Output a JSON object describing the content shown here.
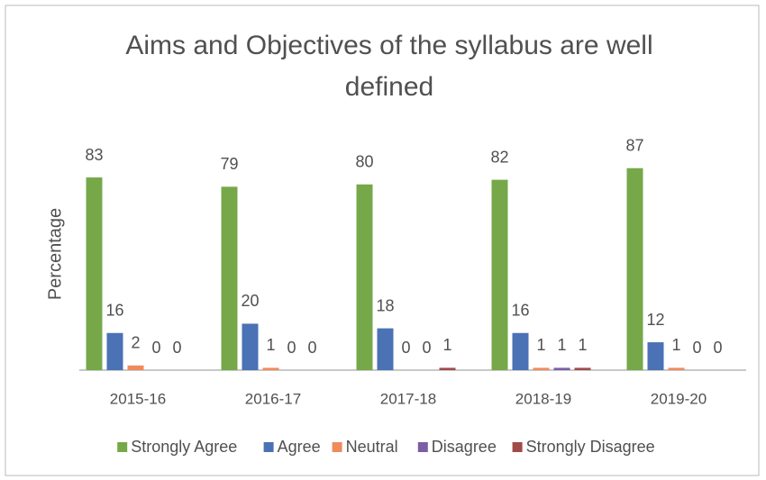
{
  "chart_data": {
    "type": "bar",
    "title_lines": [
      "Aims and Objectives of the syllabus are well",
      "defined"
    ],
    "y_label": "Percentage",
    "categories": [
      "2015-16",
      "2016-17",
      "2017-18",
      "2018-19",
      "2019-20"
    ],
    "series": [
      {
        "name": "Strongly Agree",
        "color": "#76a84a",
        "values": [
          83,
          79,
          80,
          82,
          87
        ]
      },
      {
        "name": "Agree",
        "color": "#4a72b4",
        "values": [
          16,
          20,
          18,
          16,
          12
        ]
      },
      {
        "name": "Neutral",
        "color": "#ef8a5c",
        "values": [
          2,
          1,
          0,
          1,
          1
        ]
      },
      {
        "name": "Disagree",
        "color": "#7a5ea6",
        "values": [
          0,
          0,
          0,
          1,
          0
        ]
      },
      {
        "name": "Strongly Disagree",
        "color": "#a14a4a",
        "values": [
          0,
          0,
          1,
          1,
          0
        ]
      }
    ],
    "ylim": [
      0,
      90
    ],
    "legend": "bottom"
  }
}
